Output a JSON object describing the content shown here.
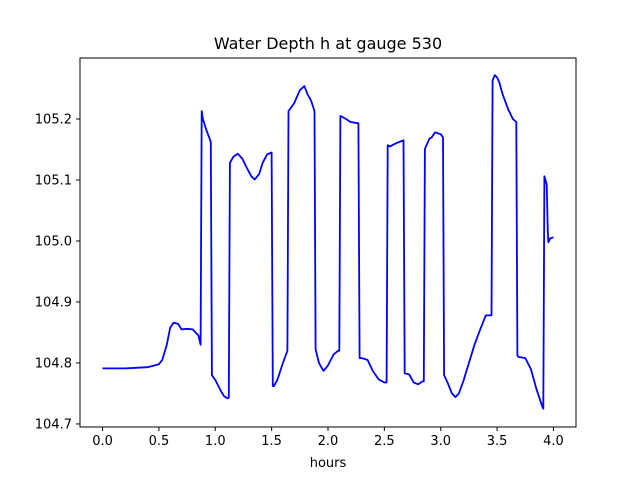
{
  "chart_data": {
    "type": "line",
    "title": "Water Depth h at gauge 530",
    "xlabel": "hours",
    "ylabel": "",
    "xlim": [
      -0.2,
      4.2
    ],
    "ylim": [
      104.695,
      105.3
    ],
    "xticks": [
      0.0,
      0.5,
      1.0,
      1.5,
      2.0,
      2.5,
      3.0,
      3.5,
      4.0
    ],
    "xtick_labels": [
      "0.0",
      "0.5",
      "1.0",
      "1.5",
      "2.0",
      "2.5",
      "3.0",
      "3.5",
      "4.0"
    ],
    "yticks": [
      104.7,
      104.8,
      104.9,
      105.0,
      105.1,
      105.2
    ],
    "ytick_labels": [
      "104.7",
      "104.8",
      "104.9",
      "105.0",
      "105.1",
      "105.2"
    ],
    "grid": false,
    "series": [
      {
        "color": "#0000ff",
        "x": [
          0.0,
          0.2,
          0.4,
          0.5,
          0.53,
          0.57,
          0.6,
          0.63,
          0.67,
          0.7,
          0.75,
          0.8,
          0.85,
          0.87,
          0.88,
          0.89,
          0.92,
          0.95,
          0.96,
          0.97,
          1.0,
          1.05,
          1.08,
          1.11,
          1.12,
          1.13,
          1.16,
          1.2,
          1.24,
          1.28,
          1.32,
          1.35,
          1.39,
          1.42,
          1.46,
          1.5,
          1.51,
          1.52,
          1.55,
          1.6,
          1.64,
          1.65,
          1.7,
          1.75,
          1.79,
          1.82,
          1.85,
          1.88,
          1.89,
          1.92,
          1.96,
          2.0,
          2.05,
          2.09,
          2.1,
          2.11,
          2.16,
          2.2,
          2.27,
          2.28,
          2.3,
          2.35,
          2.4,
          2.45,
          2.5,
          2.52,
          2.53,
          2.55,
          2.6,
          2.67,
          2.68,
          2.72,
          2.76,
          2.8,
          2.84,
          2.85,
          2.86,
          2.9,
          2.92,
          2.95,
          3.0,
          3.02,
          3.03,
          3.06,
          3.1,
          3.13,
          3.16,
          3.2,
          3.25,
          3.3,
          3.35,
          3.4,
          3.45,
          3.46,
          3.47,
          3.48,
          3.5,
          3.52,
          3.55,
          3.6,
          3.64,
          3.67,
          3.68,
          3.69,
          3.75,
          3.8,
          3.85,
          3.9,
          3.91,
          3.92,
          3.94,
          3.95,
          3.955,
          3.97,
          4.0
        ],
        "values": [
          104.791,
          104.791,
          104.793,
          104.798,
          104.805,
          104.83,
          104.858,
          104.866,
          104.864,
          104.855,
          104.856,
          104.855,
          104.845,
          104.83,
          105.213,
          105.2,
          105.182,
          105.168,
          105.162,
          104.78,
          104.772,
          104.754,
          104.745,
          104.742,
          104.743,
          105.128,
          105.138,
          105.143,
          105.135,
          105.12,
          105.106,
          105.101,
          105.11,
          105.128,
          105.142,
          105.145,
          104.762,
          104.762,
          104.772,
          104.8,
          104.82,
          105.213,
          105.226,
          105.247,
          105.254,
          105.24,
          105.23,
          105.213,
          104.822,
          104.8,
          104.787,
          104.796,
          104.814,
          104.82,
          104.82,
          105.205,
          105.2,
          105.195,
          105.193,
          104.808,
          104.808,
          104.805,
          104.786,
          104.773,
          104.768,
          104.768,
          105.157,
          105.155,
          105.16,
          105.165,
          104.783,
          104.781,
          104.768,
          104.765,
          104.77,
          104.77,
          105.151,
          105.168,
          105.17,
          105.178,
          105.175,
          105.17,
          104.78,
          104.768,
          104.75,
          104.744,
          104.75,
          104.77,
          104.8,
          104.83,
          104.855,
          104.878,
          104.878,
          105.263,
          105.268,
          105.272,
          105.268,
          105.26,
          105.24,
          105.215,
          105.2,
          105.195,
          104.812,
          104.81,
          104.808,
          104.79,
          104.757,
          104.729,
          104.725,
          105.106,
          105.093,
          105.015,
          104.998,
          105.004,
          105.006
        ]
      }
    ]
  }
}
